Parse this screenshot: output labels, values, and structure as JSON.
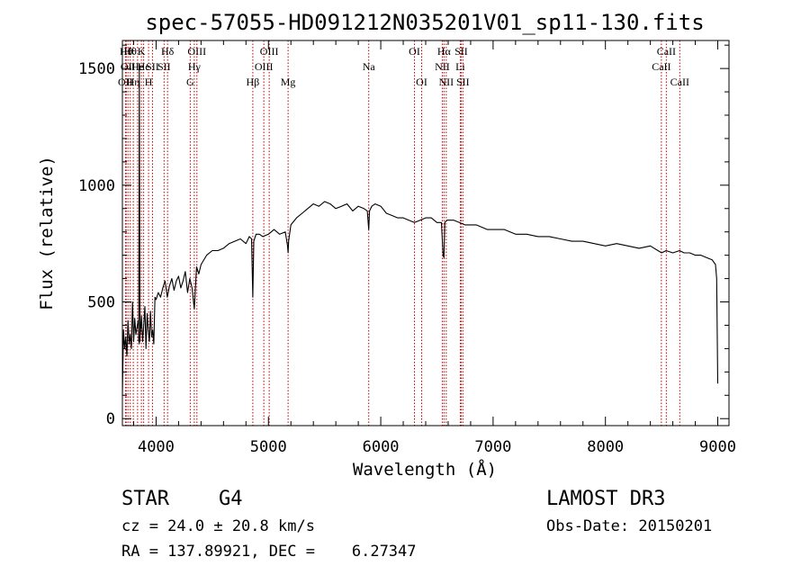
{
  "chart_data": {
    "type": "line",
    "title": "spec-57055-HD091212N035201V01_sp11-130.fits",
    "xlabel": "Wavelength (Å)",
    "ylabel": "Flux (relative)",
    "xlim": [
      3700,
      9100
    ],
    "ylim": [
      -30,
      1620
    ],
    "xticks": [
      4000,
      5000,
      6000,
      7000,
      8000,
      9000
    ],
    "yticks": [
      0,
      500,
      1000,
      1500
    ],
    "grid": false,
    "series": [
      {
        "name": "flux",
        "color": "#000000",
        "x": [
          3700,
          3710,
          3720,
          3730,
          3740,
          3750,
          3760,
          3770,
          3780,
          3790,
          3800,
          3810,
          3820,
          3830,
          3840,
          3850,
          3860,
          3870,
          3880,
          3890,
          3900,
          3910,
          3920,
          3930,
          3940,
          3950,
          3960,
          3970,
          3980,
          3990,
          4000,
          4020,
          4040,
          4060,
          4080,
          4100,
          4120,
          4140,
          4160,
          4180,
          4200,
          4220,
          4240,
          4260,
          4280,
          4300,
          4320,
          4340,
          4360,
          4380,
          4400,
          4450,
          4500,
          4550,
          4600,
          4650,
          4700,
          4750,
          4800,
          4830,
          4850,
          4861,
          4870,
          4890,
          4920,
          4950,
          5000,
          5050,
          5100,
          5150,
          5170,
          5175,
          5180,
          5200,
          5250,
          5300,
          5350,
          5400,
          5450,
          5500,
          5550,
          5600,
          5650,
          5700,
          5750,
          5800,
          5850,
          5880,
          5893,
          5900,
          5920,
          5950,
          6000,
          6050,
          6100,
          6150,
          6200,
          6250,
          6300,
          6350,
          6400,
          6450,
          6500,
          6540,
          6555,
          6563,
          6570,
          6590,
          6650,
          6700,
          6750,
          6800,
          6850,
          6900,
          6950,
          7000,
          7100,
          7200,
          7300,
          7400,
          7500,
          7600,
          7700,
          7800,
          7900,
          8000,
          8100,
          8200,
          8300,
          8400,
          8500,
          8540,
          8600,
          8660,
          8700,
          8750,
          8800,
          8850,
          8900,
          8950,
          8980,
          8990,
          9000
        ],
        "values": [
          100,
          380,
          300,
          350,
          270,
          420,
          320,
          360,
          300,
          500,
          330,
          430,
          360,
          390,
          420,
          320,
          370,
          440,
          330,
          400,
          480,
          300,
          450,
          380,
          330,
          460,
          350,
          380,
          320,
          520,
          510,
          540,
          520,
          560,
          590,
          520,
          570,
          600,
          550,
          590,
          610,
          560,
          590,
          630,
          540,
          600,
          560,
          470,
          650,
          620,
          660,
          700,
          720,
          720,
          730,
          750,
          760,
          770,
          750,
          780,
          770,
          520,
          760,
          790,
          790,
          780,
          790,
          810,
          790,
          800,
          740,
          710,
          760,
          830,
          860,
          880,
          900,
          920,
          910,
          930,
          920,
          900,
          910,
          920,
          890,
          910,
          900,
          890,
          810,
          890,
          910,
          920,
          910,
          880,
          870,
          860,
          860,
          850,
          840,
          850,
          860,
          860,
          840,
          840,
          700,
          690,
          840,
          850,
          850,
          840,
          830,
          830,
          830,
          820,
          810,
          810,
          810,
          790,
          790,
          780,
          780,
          770,
          760,
          760,
          750,
          740,
          750,
          740,
          730,
          740,
          710,
          720,
          710,
          720,
          710,
          710,
          700,
          700,
          690,
          680,
          660,
          600,
          150
        ]
      },
      {
        "name": "spike",
        "color": "#000000",
        "x": [
          3845,
          3849,
          3851,
          3853,
          3857
        ],
        "values": [
          330,
          1000,
          1520,
          1000,
          330
        ]
      }
    ],
    "lines": [
      {
        "x": 3727,
        "row": 2,
        "label": "OII"
      },
      {
        "x": 3734,
        "row": 0,
        "label": "Hθ"
      },
      {
        "x": 3750,
        "row": 1,
        "label": "OII"
      },
      {
        "x": 3770,
        "row": 0,
        "label": "Hθ"
      },
      {
        "x": 3797,
        "row": 2,
        "label": "Hη"
      },
      {
        "x": 3835,
        "row": 1,
        "label": "He"
      },
      {
        "x": 3869,
        "row": 0,
        "label": "K"
      },
      {
        "x": 3889,
        "row": 1,
        "label": "He"
      },
      {
        "x": 3933,
        "row": 2,
        "label": "H"
      },
      {
        "x": 3968,
        "row": 1,
        "label": "SII"
      },
      {
        "x": 4071,
        "row": 1,
        "label": "SII"
      },
      {
        "x": 4102,
        "row": 0,
        "label": "Hδ"
      },
      {
        "x": 4304,
        "row": 2,
        "label": "G"
      },
      {
        "x": 4340,
        "row": 1,
        "label": "Hγ"
      },
      {
        "x": 4363,
        "row": 0,
        "label": "OIII"
      },
      {
        "x": 4861,
        "row": 2,
        "label": "Hβ"
      },
      {
        "x": 4959,
        "row": 1,
        "label": "OIII"
      },
      {
        "x": 5007,
        "row": 0,
        "label": "OIII"
      },
      {
        "x": 5175,
        "row": 2,
        "label": "Mg"
      },
      {
        "x": 5893,
        "row": 1,
        "label": "Na"
      },
      {
        "x": 6300,
        "row": 0,
        "label": "OI"
      },
      {
        "x": 6364,
        "row": 2,
        "label": "OI"
      },
      {
        "x": 6548,
        "row": 1,
        "label": "NII"
      },
      {
        "x": 6563,
        "row": 0,
        "label": "Hα"
      },
      {
        "x": 6583,
        "row": 2,
        "label": "NII"
      },
      {
        "x": 6708,
        "row": 1,
        "label": "Li"
      },
      {
        "x": 6716,
        "row": 0,
        "label": "SII"
      },
      {
        "x": 6731,
        "row": 2,
        "label": "SII"
      },
      {
        "x": 8498,
        "row": 1,
        "label": "CaII"
      },
      {
        "x": 8542,
        "row": 0,
        "label": "CaII"
      },
      {
        "x": 8662,
        "row": 2,
        "label": "CaII"
      }
    ]
  },
  "info": {
    "class_label": "STAR",
    "subclass": "G4",
    "cz": "cz = 24.0 ± 20.8 km/s",
    "radec": "RA = 137.89921, DEC =    6.27347",
    "survey": "LAMOST DR3",
    "obs_date": "Obs-Date: 20150201"
  }
}
